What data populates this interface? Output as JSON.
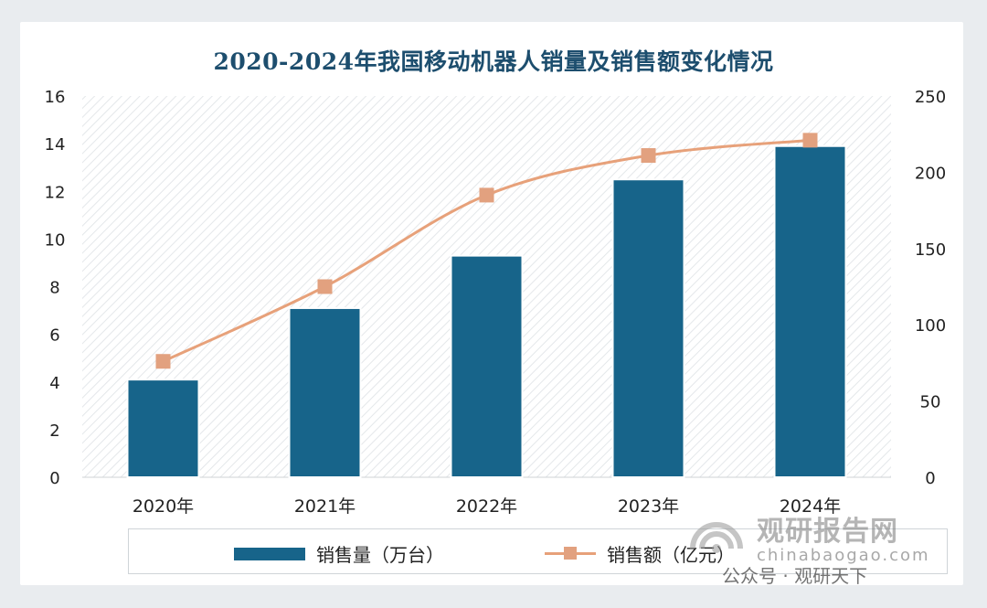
{
  "chart_data": {
    "type": "bar",
    "title": "2020-2024年我国移动机器人销量及销售额变化情况",
    "categories": [
      "2020年",
      "2021年",
      "2022年",
      "2023年",
      "2024年"
    ],
    "series": [
      {
        "name": "销售量（万台）",
        "type": "bar",
        "axis": "left",
        "values": [
          4.1,
          7.1,
          9.3,
          12.5,
          13.9
        ],
        "color": "#17648a"
      },
      {
        "name": "销售额（亿元）",
        "type": "line",
        "axis": "right",
        "values": [
          76,
          125,
          185,
          211,
          221
        ],
        "color": "#e7a17a"
      }
    ],
    "y_left": {
      "ylim": [
        0,
        16
      ],
      "ticks": [
        0,
        2,
        4,
        6,
        8,
        10,
        12,
        14,
        16
      ]
    },
    "y_right": {
      "ylim": [
        0,
        250
      ],
      "ticks": [
        0,
        50,
        100,
        150,
        200,
        250
      ]
    },
    "legend_position": "bottom",
    "grid": false
  },
  "watermark": {
    "brand": "观研报告网",
    "url": "chinabaogao.com",
    "wechat": "公众号 · 观研天下"
  }
}
